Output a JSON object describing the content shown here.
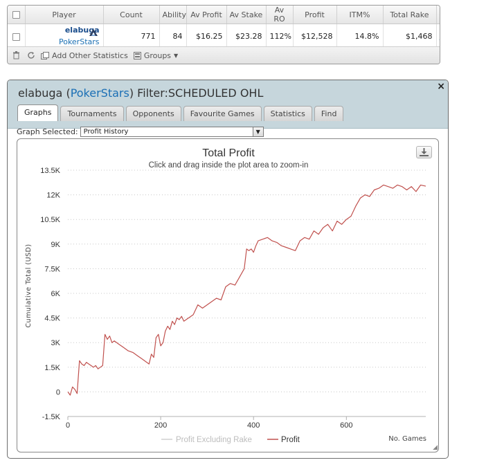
{
  "stats_table": {
    "headers": [
      "Player",
      "Count",
      "Ability",
      "Av Profit",
      "Av Stake",
      "Av RO",
      "Profit",
      "ITM%",
      "Total Rake"
    ],
    "row": {
      "player_name": "elabuga",
      "site": "PokerStars",
      "count": "771",
      "ability": "84",
      "av_profit": "$16.25",
      "av_stake": "$23.28",
      "av_ro": "112%",
      "profit": "$12,528",
      "itm": "14.8%",
      "total_rake": "$1,468",
      "remove_label": "x"
    },
    "toolbar": {
      "add_stats_label": "Add Other Statistics",
      "groups_label": "Groups"
    }
  },
  "dialog": {
    "player_name": "elabuga",
    "site": "PokerStars",
    "filter_text": "Filter:SCHEDULED OHL",
    "close_label": "×",
    "tabs": [
      "Graphs",
      "Tournaments",
      "Opponents",
      "Favourite Games",
      "Statistics",
      "Find"
    ],
    "active_tab": "Graphs",
    "graph_selected_label": "Graph Selected:",
    "graph_selected_value": "Profit History"
  },
  "chart_data": {
    "type": "line",
    "title": "Total Profit",
    "subtitle": "Click and drag inside the plot area to zoom-in",
    "ylabel": "Cumulative Total (USD)",
    "xlabel": "No. Games",
    "ylim": [
      -1500,
      13500
    ],
    "xlim": [
      0,
      771
    ],
    "y_ticks": [
      "-1.5K",
      "0",
      "1.5K",
      "3K",
      "4.5K",
      "6K",
      "7.5K",
      "9K",
      "10.5K",
      "12K",
      "13.5K"
    ],
    "x_ticks": [
      "0",
      "200",
      "400",
      "600"
    ],
    "legend": [
      "Profit Excluding Rake",
      "Profit"
    ],
    "series": [
      {
        "name": "Profit",
        "color": "#c0504d",
        "x": [
          0,
          5,
          10,
          15,
          20,
          25,
          30,
          35,
          40,
          45,
          50,
          55,
          60,
          65,
          70,
          75,
          80,
          85,
          90,
          95,
          100,
          110,
          120,
          130,
          140,
          150,
          160,
          170,
          175,
          180,
          185,
          190,
          195,
          200,
          205,
          210,
          215,
          220,
          225,
          230,
          235,
          240,
          245,
          250,
          260,
          270,
          280,
          290,
          300,
          310,
          320,
          330,
          340,
          350,
          360,
          370,
          380,
          385,
          390,
          395,
          400,
          405,
          410,
          420,
          430,
          440,
          450,
          460,
          470,
          480,
          490,
          500,
          510,
          520,
          530,
          540,
          550,
          560,
          570,
          580,
          590,
          600,
          610,
          620,
          630,
          640,
          650,
          660,
          670,
          680,
          690,
          700,
          710,
          720,
          730,
          740,
          750,
          760,
          771
        ],
        "y": [
          0,
          -200,
          300,
          150,
          -100,
          1900,
          1700,
          1600,
          1800,
          1700,
          1600,
          1500,
          1600,
          1400,
          1500,
          1600,
          3500,
          3200,
          3400,
          3000,
          3100,
          2900,
          2700,
          2500,
          2400,
          2200,
          2000,
          1800,
          1700,
          2300,
          2100,
          3300,
          3500,
          2800,
          3000,
          3700,
          4000,
          3800,
          4300,
          4100,
          4500,
          4400,
          4600,
          4300,
          4500,
          4700,
          5300,
          5100,
          5300,
          5500,
          5700,
          5600,
          6400,
          6600,
          6500,
          7000,
          7500,
          8700,
          8600,
          8700,
          8500,
          8900,
          9200,
          9300,
          9400,
          9200,
          9100,
          8900,
          8800,
          8700,
          8600,
          9200,
          9400,
          9300,
          9800,
          9600,
          10000,
          10200,
          9800,
          10400,
          10200,
          10500,
          10700,
          11300,
          11800,
          12000,
          11900,
          12300,
          12400,
          12600,
          12500,
          12400,
          12600,
          12500,
          12300,
          12500,
          12200,
          12600,
          12528
        ]
      }
    ]
  }
}
